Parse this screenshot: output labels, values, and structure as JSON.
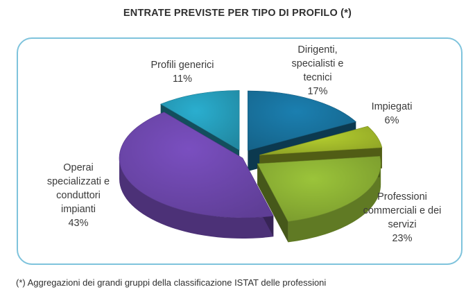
{
  "title": "ENTRATE PREVISTE PER TIPO DI PROFILO (*)",
  "footnote": "(*) Aggregazioni dei grandi gruppi della classificazione ISTAT delle professioni",
  "chart_data": {
    "type": "pie",
    "title": "ENTRATE PREVISTE PER TIPO DI PROFILO (*)",
    "unit": "%",
    "slices": [
      {
        "name": "Dirigenti, specialisti e tecnici",
        "label_lines": [
          "Dirigenti,",
          "specialisti e",
          "tecnici"
        ],
        "value": 17,
        "value_label": "17%",
        "color": "#1b7fb0"
      },
      {
        "name": "Impiegati",
        "label_lines": [
          "Impiegati"
        ],
        "value": 6,
        "value_label": "6%",
        "color": "#b5cf2f"
      },
      {
        "name": "Professioni commerciali e dei servizi",
        "label_lines": [
          "Professioni",
          "commerciali e dei",
          "servizi"
        ],
        "value": 23,
        "value_label": "23%",
        "color": "#9bc43a"
      },
      {
        "name": "Operai specializzati e conduttori impianti",
        "label_lines": [
          "Operai",
          "specializzati e",
          "conduttori",
          "impianti"
        ],
        "value": 43,
        "value_label": "43%",
        "color": "#7a4fc0"
      },
      {
        "name": "Profili generici",
        "label_lines": [
          "Profili generici"
        ],
        "value": 11,
        "value_label": "11%",
        "color": "#2aaecf"
      }
    ]
  }
}
